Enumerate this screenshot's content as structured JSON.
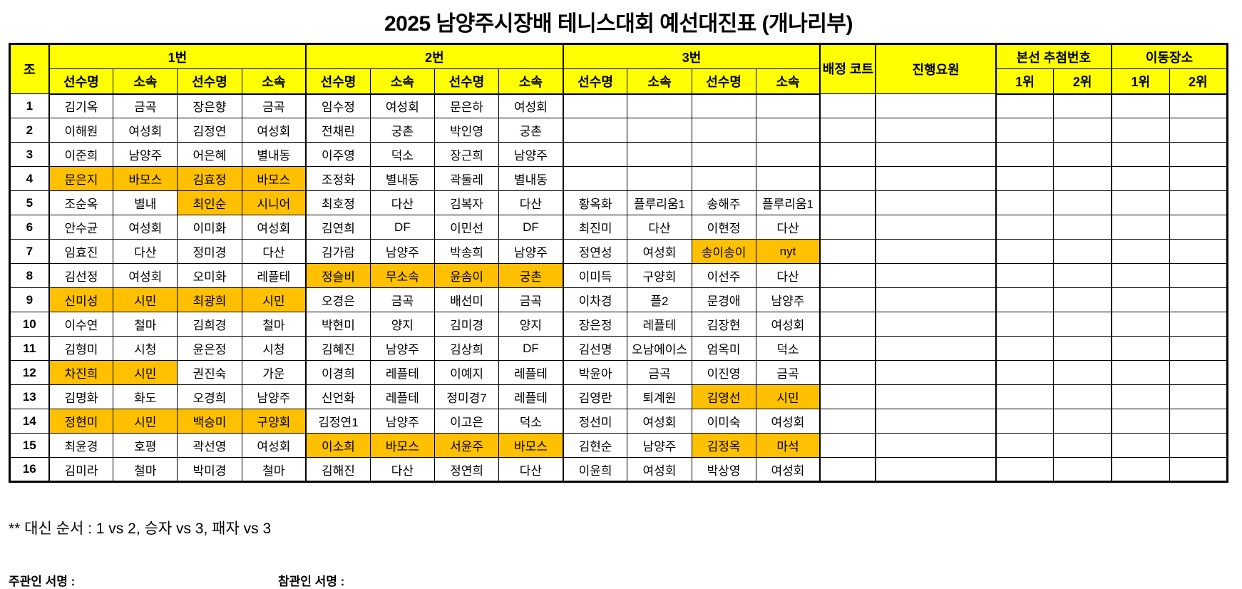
{
  "title": "2025 남양주시장배 테니스대회 예선대진표 (개나리부)",
  "colors": {
    "header_bg": "#ffff00",
    "highlight_bg": "#ffc000",
    "border": "#000000"
  },
  "header": {
    "group_label": "조",
    "section_labels": [
      "1번",
      "2번",
      "3번"
    ],
    "player_label": "선수명",
    "affiliation_label": "소속",
    "court_label": "배정 코트",
    "staff_label": "진행요원",
    "main_draw_label": "본선 추첨번호",
    "relocation_label": "이동장소",
    "first_place_label": "1위",
    "second_place_label": "2위"
  },
  "rows": [
    {
      "no": "1",
      "cells": [
        "김기옥",
        "금곡",
        "장은향",
        "금곡",
        "임수정",
        "여성회",
        "문은하",
        "여성회",
        "",
        "",
        "",
        ""
      ],
      "highlight": []
    },
    {
      "no": "2",
      "cells": [
        "이해원",
        "여성회",
        "김정연",
        "여성회",
        "전채린",
        "궁촌",
        "박인영",
        "궁촌",
        "",
        "",
        "",
        ""
      ],
      "highlight": []
    },
    {
      "no": "3",
      "cells": [
        "이준희",
        "남양주",
        "어은혜",
        "별내동",
        "이주영",
        "덕소",
        "장근희",
        "남양주",
        "",
        "",
        "",
        ""
      ],
      "highlight": []
    },
    {
      "no": "4",
      "cells": [
        "문은지",
        "바모스",
        "김효정",
        "바모스",
        "조정화",
        "별내동",
        "곽둘레",
        "별내동",
        "",
        "",
        "",
        ""
      ],
      "highlight": [
        0,
        1,
        2,
        3
      ]
    },
    {
      "no": "5",
      "cells": [
        "조순옥",
        "별내",
        "최인순",
        "시니어",
        "최호정",
        "다산",
        "김복자",
        "다산",
        "황옥화",
        "플루리움1",
        "송해주",
        "플루리움1"
      ],
      "highlight": [
        2,
        3
      ]
    },
    {
      "no": "6",
      "cells": [
        "안수균",
        "여성회",
        "이미화",
        "여성회",
        "김연희",
        "DF",
        "이민선",
        "DF",
        "최진미",
        "다산",
        "이현정",
        "다산"
      ],
      "highlight": []
    },
    {
      "no": "7",
      "cells": [
        "임효진",
        "다산",
        "정미경",
        "다산",
        "김가람",
        "남양주",
        "박송희",
        "남양주",
        "정연성",
        "여성회",
        "송이송이",
        "nyt"
      ],
      "highlight": [
        10,
        11
      ]
    },
    {
      "no": "8",
      "cells": [
        "김선정",
        "여성회",
        "오미화",
        "레플테",
        "정슬비",
        "무소속",
        "윤솜이",
        "궁촌",
        "이미득",
        "구양회",
        "이선주",
        "다산"
      ],
      "highlight": [
        4,
        5,
        6,
        7
      ]
    },
    {
      "no": "9",
      "cells": [
        "신미성",
        "시민",
        "최광희",
        "시민",
        "오경은",
        "금곡",
        "배선미",
        "금곡",
        "이차경",
        "플2",
        "문경애",
        "남양주"
      ],
      "highlight": [
        0,
        1,
        2,
        3
      ]
    },
    {
      "no": "10",
      "cells": [
        "이수연",
        "철마",
        "김희경",
        "철마",
        "박현미",
        "양지",
        "김미경",
        "양지",
        "장은정",
        "레플테",
        "김장현",
        "여성회"
      ],
      "highlight": []
    },
    {
      "no": "11",
      "cells": [
        "김형미",
        "시청",
        "윤은정",
        "시청",
        "김혜진",
        "남양주",
        "김상희",
        "DF",
        "김선명",
        "오남에이스",
        "엄옥미",
        "덕소"
      ],
      "highlight": []
    },
    {
      "no": "12",
      "cells": [
        "차진희",
        "시민",
        "권진숙",
        "가운",
        "이경희",
        "레플테",
        "이예지",
        "레플테",
        "박윤아",
        "금곡",
        "이진영",
        "금곡"
      ],
      "highlight": [
        0,
        1
      ]
    },
    {
      "no": "13",
      "cells": [
        "김명화",
        "화도",
        "오경희",
        "남양주",
        "신언화",
        "레플테",
        "정미경7",
        "레플테",
        "김영란",
        "퇴계원",
        "김영선",
        "시민"
      ],
      "highlight": [
        10,
        11
      ]
    },
    {
      "no": "14",
      "cells": [
        "정현미",
        "시민",
        "백승미",
        "구양회",
        "김정연1",
        "남양주",
        "이고은",
        "덕소",
        "정선미",
        "여성회",
        "이미숙",
        "여성회"
      ],
      "highlight": [
        0,
        1,
        2,
        3
      ]
    },
    {
      "no": "15",
      "cells": [
        "최윤경",
        "호평",
        "곽선영",
        "여성회",
        "이소희",
        "바모스",
        "서윤주",
        "바모스",
        "김현순",
        "남양주",
        "김정옥",
        "마석"
      ],
      "highlight": [
        4,
        5,
        6,
        7,
        10,
        11
      ]
    },
    {
      "no": "16",
      "cells": [
        "김미라",
        "철마",
        "박미경",
        "철마",
        "김해진",
        "다산",
        "정연희",
        "다산",
        "이윤희",
        "여성회",
        "박상영",
        "여성회"
      ],
      "highlight": []
    }
  ],
  "footer": {
    "match_order_note": "** 대신 순서 : 1 vs 2, 승자 vs 3, 패자 vs 3",
    "organizer_sign_label": "주관인 서명 :",
    "observer_sign_label": "참관인 서명 :"
  }
}
